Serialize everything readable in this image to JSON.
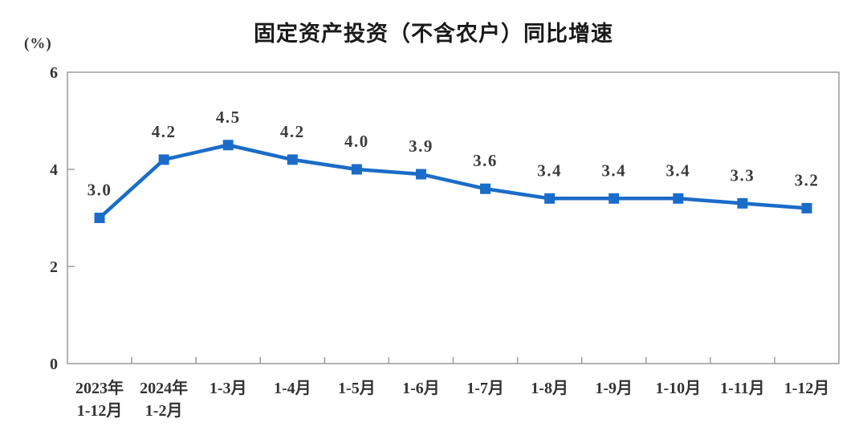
{
  "colors": {
    "line_blue": "#1B6CC8",
    "frame_gray": "#9C9C9C",
    "text_dark": "#333333"
  },
  "chart_data": {
    "type": "line",
    "title": "固定资产投资（不含农户）同比增速",
    "unit": "(%)",
    "categories": [
      "2023年\n1-12月",
      "2024年\n1-2月",
      "1-3月",
      "1-4月",
      "1-5月",
      "1-6月",
      "1-7月",
      "1-8月",
      "1-9月",
      "1-10月",
      "1-11月",
      "1-12月"
    ],
    "values": [
      3.0,
      4.2,
      4.5,
      4.2,
      4.0,
      3.9,
      3.6,
      3.4,
      3.4,
      3.4,
      3.3,
      3.2
    ],
    "ylim": [
      0,
      6
    ],
    "yticks": [
      0,
      2,
      4,
      6
    ],
    "grid": false,
    "legend": "none",
    "marker": "square",
    "data_labels": "above"
  }
}
